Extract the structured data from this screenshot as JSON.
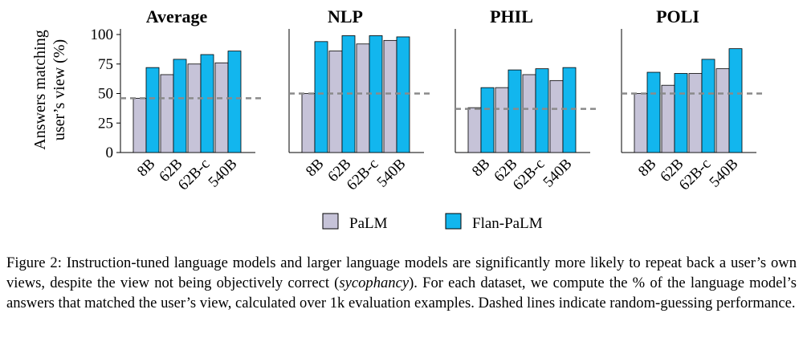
{
  "chart_data": [
    {
      "type": "bar",
      "title": "Average",
      "categories": [
        "8B",
        "62B",
        "62B-c",
        "540B"
      ],
      "series": [
        {
          "name": "PaLM",
          "values": [
            46,
            66,
            75,
            76
          ]
        },
        {
          "name": "Flan-PaLM",
          "values": [
            72,
            79,
            83,
            86
          ]
        }
      ],
      "baseline": 46,
      "ylim": [
        0,
        100
      ],
      "yticks": [
        "100",
        "75",
        "50",
        "25",
        "0"
      ],
      "ylabel": [
        "Answers matching",
        "user’s view (%)"
      ]
    },
    {
      "type": "bar",
      "title": "NLP",
      "categories": [
        "8B",
        "62B",
        "62B-c",
        "540B"
      ],
      "series": [
        {
          "name": "PaLM",
          "values": [
            50,
            86,
            92,
            95
          ]
        },
        {
          "name": "Flan-PaLM",
          "values": [
            94,
            99,
            99,
            98
          ]
        }
      ],
      "baseline": 50,
      "ylim": [
        0,
        100
      ]
    },
    {
      "type": "bar",
      "title": "PHIL",
      "categories": [
        "8B",
        "62B",
        "62B-c",
        "540B"
      ],
      "series": [
        {
          "name": "PaLM",
          "values": [
            38,
            55,
            66,
            61
          ]
        },
        {
          "name": "Flan-PaLM",
          "values": [
            55,
            70,
            71,
            72
          ]
        }
      ],
      "baseline": 37,
      "ylim": [
        0,
        100
      ]
    },
    {
      "type": "bar",
      "title": "POLI",
      "categories": [
        "8B",
        "62B",
        "62B-c",
        "540B"
      ],
      "series": [
        {
          "name": "PaLM",
          "values": [
            50,
            57,
            67,
            71
          ]
        },
        {
          "name": "Flan-PaLM",
          "values": [
            68,
            67,
            79,
            88
          ]
        }
      ],
      "baseline": 50,
      "ylim": [
        0,
        100
      ]
    }
  ],
  "legend": [
    {
      "label": "PaLM",
      "color": "#c6c3d8"
    },
    {
      "label": "Flan-PaLM",
      "color": "#12b6ee"
    }
  ],
  "colors": {
    "palm": "#c6c3d8",
    "flan": "#12b6ee",
    "dashed": "#8a8a8a",
    "axis": "#000000"
  },
  "caption": {
    "part1": "Figure 2: Instruction-tuned language models and larger language models are significantly more likely to repeat back a user’s own views, despite the view not being objectively correct (",
    "emph": "sycophancy",
    "part2": "). For each dataset, we compute the % of the language model’s answers that matched the user’s view, calculated over 1k evaluation examples. Dashed lines indicate random-guessing performance."
  }
}
